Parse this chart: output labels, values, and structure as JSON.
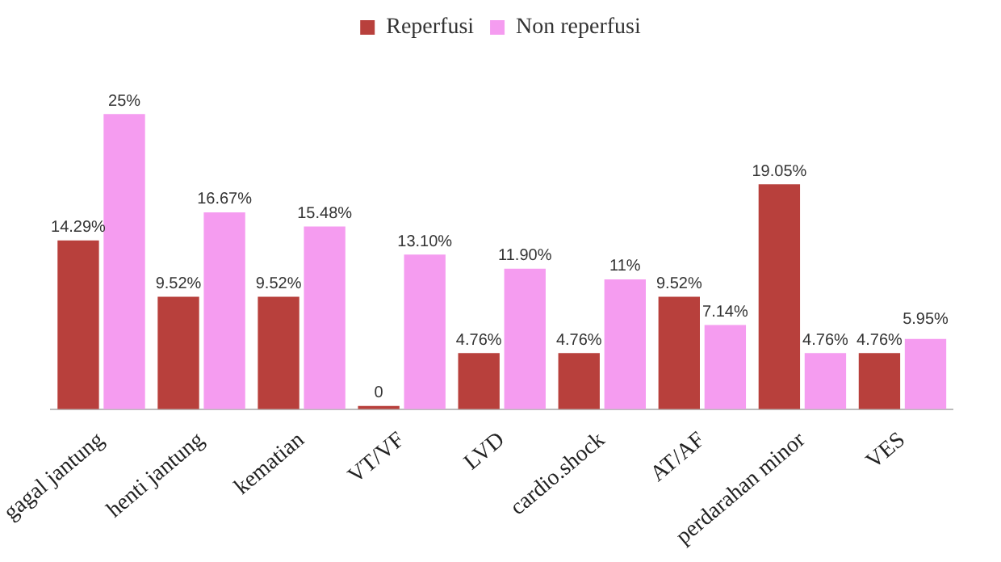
{
  "chart_data": {
    "type": "bar",
    "categories": [
      "gagal jantung",
      "henti jantung",
      "kematian",
      "VT/VF",
      "LVD",
      "cardio.shock",
      "AT/AF",
      "perdarahan minor",
      "VES"
    ],
    "series": [
      {
        "name": "Reperfusi",
        "color": "#b8403c",
        "values": [
          14.29,
          9.52,
          9.52,
          0,
          4.76,
          4.76,
          9.52,
          19.05,
          4.76
        ],
        "value_labels": [
          "14.29%",
          "9.52%",
          "9.52%",
          "0",
          "4.76%",
          "4.76%",
          "9.52%",
          "19.05%",
          "4.76%"
        ]
      },
      {
        "name": "Non reperfusi",
        "color": "#f59cf0",
        "values": [
          25,
          16.67,
          15.48,
          13.1,
          11.9,
          11,
          7.14,
          4.76,
          5.95
        ],
        "value_labels": [
          "25%",
          "16.67%",
          "15.48%",
          "13.10%",
          "11.90%",
          "11%",
          "7.14%",
          "4.76%",
          "5.95%"
        ]
      }
    ],
    "legend": "top",
    "grid": false
  }
}
